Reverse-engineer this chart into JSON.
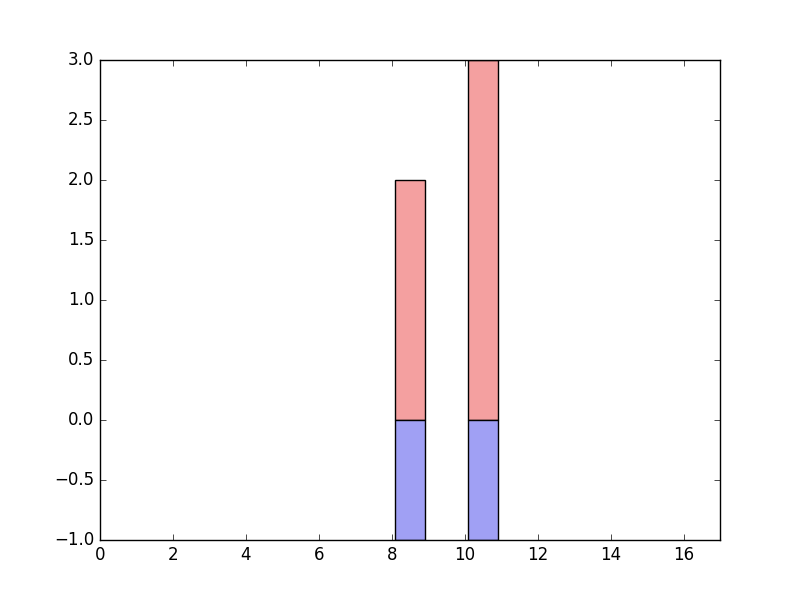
{
  "bar_positions": [
    8.5,
    10.5
  ],
  "positive_values": [
    2.0,
    3.0
  ],
  "negative_values": [
    -1.0,
    -1.0
  ],
  "bar_width": 0.8,
  "positive_color": "#f4a0a0",
  "negative_color": "#a0a0f4",
  "xlim": [
    0,
    17
  ],
  "ylim": [
    -1.0,
    3.0
  ],
  "xticks": [
    0,
    2,
    4,
    6,
    8,
    10,
    12,
    14,
    16
  ],
  "yticks": [
    -1.0,
    -0.5,
    0.0,
    0.5,
    1.0,
    1.5,
    2.0,
    2.5,
    3.0
  ],
  "figsize": [
    8.0,
    6.0
  ],
  "dpi": 100,
  "background_color": "#ffffff"
}
